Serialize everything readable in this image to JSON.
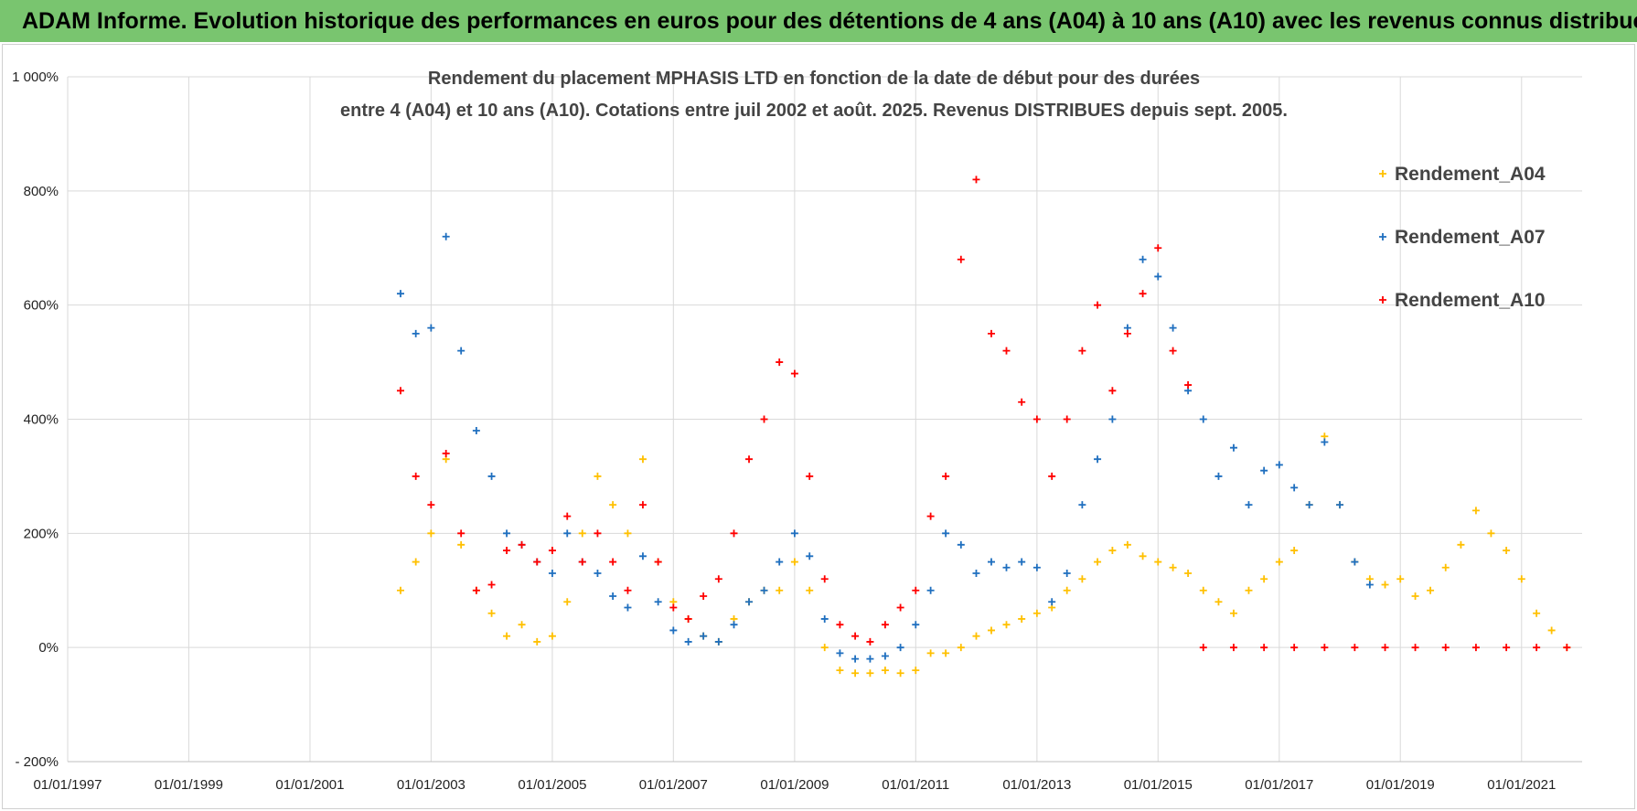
{
  "banner": {
    "text": "ADAM Informe. Evolution historique des performances en euros pour des détentions de 4 ans (A04) à 10 ans (A10) avec les revenus connus distribués"
  },
  "colors": {
    "banner": "#79c56f",
    "A04": "#ffc000",
    "A07": "#1f6fbf",
    "A10": "#ff0000",
    "grid": "#d9d9d9"
  },
  "chart_data": {
    "type": "scatter",
    "title_line1": "Rendement du placement MPHASIS LTD en fonction de la date de début pour des durées",
    "title_line2": "entre 4 (A04) et 10 ans (A10). Cotations entre juil 2002 et août. 2025. Revenus DISTRIBUES depuis sept. 2005.",
    "xlabel": "",
    "ylabel": "",
    "x_range": [
      "1997-01-01",
      "2022-01-01"
    ],
    "ylim": [
      -200,
      1000
    ],
    "x_ticks": [
      "01/01/1997",
      "01/01/1999",
      "01/01/2001",
      "01/01/2003",
      "01/01/2005",
      "01/01/2007",
      "01/01/2009",
      "01/01/2011",
      "01/01/2013",
      "01/01/2015",
      "01/01/2017",
      "01/01/2019",
      "01/01/2021"
    ],
    "y_ticks": [
      "1 000%",
      "800%",
      "600%",
      "400%",
      "200%",
      "0%",
      "- 200%"
    ],
    "grid": true,
    "legend_position": "right",
    "series": [
      {
        "name": "Rendement_A04",
        "color": "#ffc000",
        "points": [
          [
            "2002-07-01",
            100
          ],
          [
            "2002-10-01",
            150
          ],
          [
            "2003-01-01",
            200
          ],
          [
            "2003-04-01",
            330
          ],
          [
            "2003-07-01",
            180
          ],
          [
            "2003-10-01",
            100
          ],
          [
            "2004-01-01",
            60
          ],
          [
            "2004-04-01",
            20
          ],
          [
            "2004-07-01",
            40
          ],
          [
            "2004-10-01",
            10
          ],
          [
            "2005-01-01",
            20
          ],
          [
            "2005-04-01",
            80
          ],
          [
            "2005-07-01",
            200
          ],
          [
            "2005-10-01",
            300
          ],
          [
            "2006-01-01",
            250
          ],
          [
            "2006-04-01",
            200
          ],
          [
            "2006-07-01",
            330
          ],
          [
            "2006-10-01",
            150
          ],
          [
            "2007-01-01",
            80
          ],
          [
            "2007-04-01",
            50
          ],
          [
            "2007-07-01",
            20
          ],
          [
            "2007-10-01",
            10
          ],
          [
            "2008-01-01",
            50
          ],
          [
            "2008-04-01",
            80
          ],
          [
            "2008-07-01",
            100
          ],
          [
            "2008-10-01",
            100
          ],
          [
            "2009-01-01",
            150
          ],
          [
            "2009-04-01",
            100
          ],
          [
            "2009-07-01",
            0
          ],
          [
            "2009-10-01",
            -40
          ],
          [
            "2010-01-01",
            -45
          ],
          [
            "2010-04-01",
            -45
          ],
          [
            "2010-07-01",
            -40
          ],
          [
            "2010-10-01",
            -45
          ],
          [
            "2011-01-01",
            -40
          ],
          [
            "2011-04-01",
            -10
          ],
          [
            "2011-07-01",
            -10
          ],
          [
            "2011-10-01",
            0
          ],
          [
            "2012-01-01",
            20
          ],
          [
            "2012-04-01",
            30
          ],
          [
            "2012-07-01",
            40
          ],
          [
            "2012-10-01",
            50
          ],
          [
            "2013-01-01",
            60
          ],
          [
            "2013-04-01",
            70
          ],
          [
            "2013-07-01",
            100
          ],
          [
            "2013-10-01",
            120
          ],
          [
            "2014-01-01",
            150
          ],
          [
            "2014-04-01",
            170
          ],
          [
            "2014-07-01",
            180
          ],
          [
            "2014-10-01",
            160
          ],
          [
            "2015-01-01",
            150
          ],
          [
            "2015-04-01",
            140
          ],
          [
            "2015-07-01",
            130
          ],
          [
            "2015-10-01",
            100
          ],
          [
            "2016-01-01",
            80
          ],
          [
            "2016-04-01",
            60
          ],
          [
            "2016-07-01",
            100
          ],
          [
            "2016-10-01",
            120
          ],
          [
            "2017-01-01",
            150
          ],
          [
            "2017-04-01",
            170
          ],
          [
            "2017-07-01",
            250
          ],
          [
            "2017-10-01",
            370
          ],
          [
            "2018-01-01",
            250
          ],
          [
            "2018-04-01",
            150
          ],
          [
            "2018-07-01",
            120
          ],
          [
            "2018-10-01",
            110
          ],
          [
            "2019-01-01",
            120
          ],
          [
            "2019-04-01",
            90
          ],
          [
            "2019-07-01",
            100
          ],
          [
            "2019-10-01",
            140
          ],
          [
            "2020-01-01",
            180
          ],
          [
            "2020-04-01",
            240
          ],
          [
            "2020-07-01",
            200
          ],
          [
            "2020-10-01",
            170
          ],
          [
            "2021-01-01",
            120
          ],
          [
            "2021-04-01",
            60
          ],
          [
            "2021-07-01",
            30
          ],
          [
            "2021-10-01",
            0
          ]
        ]
      },
      {
        "name": "Rendement_A07",
        "color": "#1f6fbf",
        "points": [
          [
            "2002-07-01",
            620
          ],
          [
            "2002-10-01",
            550
          ],
          [
            "2003-01-01",
            560
          ],
          [
            "2003-04-01",
            720
          ],
          [
            "2003-07-01",
            520
          ],
          [
            "2003-10-01",
            380
          ],
          [
            "2004-01-01",
            300
          ],
          [
            "2004-04-01",
            200
          ],
          [
            "2004-07-01",
            180
          ],
          [
            "2004-10-01",
            150
          ],
          [
            "2005-01-01",
            130
          ],
          [
            "2005-04-01",
            200
          ],
          [
            "2005-07-01",
            150
          ],
          [
            "2005-10-01",
            130
          ],
          [
            "2006-01-01",
            90
          ],
          [
            "2006-04-01",
            70
          ],
          [
            "2006-07-01",
            160
          ],
          [
            "2006-10-01",
            80
          ],
          [
            "2007-01-01",
            30
          ],
          [
            "2007-04-01",
            10
          ],
          [
            "2007-07-01",
            20
          ],
          [
            "2007-10-01",
            10
          ],
          [
            "2008-01-01",
            40
          ],
          [
            "2008-04-01",
            80
          ],
          [
            "2008-07-01",
            100
          ],
          [
            "2008-10-01",
            150
          ],
          [
            "2009-01-01",
            200
          ],
          [
            "2009-04-01",
            160
          ],
          [
            "2009-07-01",
            50
          ],
          [
            "2009-10-01",
            -10
          ],
          [
            "2010-01-01",
            -20
          ],
          [
            "2010-04-01",
            -20
          ],
          [
            "2010-07-01",
            -15
          ],
          [
            "2010-10-01",
            0
          ],
          [
            "2011-01-01",
            40
          ],
          [
            "2011-04-01",
            100
          ],
          [
            "2011-07-01",
            200
          ],
          [
            "2011-10-01",
            180
          ],
          [
            "2012-01-01",
            130
          ],
          [
            "2012-04-01",
            150
          ],
          [
            "2012-07-01",
            140
          ],
          [
            "2012-10-01",
            150
          ],
          [
            "2013-01-01",
            140
          ],
          [
            "2013-04-01",
            80
          ],
          [
            "2013-07-01",
            130
          ],
          [
            "2013-10-01",
            250
          ],
          [
            "2014-01-01",
            330
          ],
          [
            "2014-04-01",
            400
          ],
          [
            "2014-07-01",
            560
          ],
          [
            "2014-10-01",
            680
          ],
          [
            "2015-01-01",
            650
          ],
          [
            "2015-04-01",
            560
          ],
          [
            "2015-07-01",
            450
          ],
          [
            "2015-10-01",
            400
          ],
          [
            "2016-01-01",
            300
          ],
          [
            "2016-04-01",
            350
          ],
          [
            "2016-07-01",
            250
          ],
          [
            "2016-10-01",
            310
          ],
          [
            "2017-01-01",
            320
          ],
          [
            "2017-04-01",
            280
          ],
          [
            "2017-07-01",
            250
          ],
          [
            "2017-10-01",
            360
          ],
          [
            "2018-01-01",
            250
          ],
          [
            "2018-04-01",
            150
          ],
          [
            "2018-07-01",
            110
          ]
        ]
      },
      {
        "name": "Rendement_A10",
        "color": "#ff0000",
        "points": [
          [
            "2002-07-01",
            450
          ],
          [
            "2002-10-01",
            300
          ],
          [
            "2003-01-01",
            250
          ],
          [
            "2003-04-01",
            340
          ],
          [
            "2003-07-01",
            200
          ],
          [
            "2003-10-01",
            100
          ],
          [
            "2004-01-01",
            110
          ],
          [
            "2004-04-01",
            170
          ],
          [
            "2004-07-01",
            180
          ],
          [
            "2004-10-01",
            150
          ],
          [
            "2005-01-01",
            170
          ],
          [
            "2005-04-01",
            230
          ],
          [
            "2005-07-01",
            150
          ],
          [
            "2005-10-01",
            200
          ],
          [
            "2006-01-01",
            150
          ],
          [
            "2006-04-01",
            100
          ],
          [
            "2006-07-01",
            250
          ],
          [
            "2006-10-01",
            150
          ],
          [
            "2007-01-01",
            70
          ],
          [
            "2007-04-01",
            50
          ],
          [
            "2007-07-01",
            90
          ],
          [
            "2007-10-01",
            120
          ],
          [
            "2008-01-01",
            200
          ],
          [
            "2008-04-01",
            330
          ],
          [
            "2008-07-01",
            400
          ],
          [
            "2008-10-01",
            500
          ],
          [
            "2009-01-01",
            480
          ],
          [
            "2009-04-01",
            300
          ],
          [
            "2009-07-01",
            120
          ],
          [
            "2009-10-01",
            40
          ],
          [
            "2010-01-01",
            20
          ],
          [
            "2010-04-01",
            10
          ],
          [
            "2010-07-01",
            40
          ],
          [
            "2010-10-01",
            70
          ],
          [
            "2011-01-01",
            100
          ],
          [
            "2011-04-01",
            230
          ],
          [
            "2011-07-01",
            300
          ],
          [
            "2011-10-01",
            680
          ],
          [
            "2012-01-01",
            820
          ],
          [
            "2012-04-01",
            550
          ],
          [
            "2012-07-01",
            520
          ],
          [
            "2012-10-01",
            430
          ],
          [
            "2013-01-01",
            400
          ],
          [
            "2013-04-01",
            300
          ],
          [
            "2013-07-01",
            400
          ],
          [
            "2013-10-01",
            520
          ],
          [
            "2014-01-01",
            600
          ],
          [
            "2014-04-01",
            450
          ],
          [
            "2014-07-01",
            550
          ],
          [
            "2014-10-01",
            620
          ],
          [
            "2015-01-01",
            700
          ],
          [
            "2015-04-01",
            520
          ],
          [
            "2015-07-01",
            460
          ],
          [
            "2015-10-01",
            0
          ],
          [
            "2016-04-01",
            0
          ],
          [
            "2016-10-01",
            0
          ],
          [
            "2017-04-01",
            0
          ],
          [
            "2017-10-01",
            0
          ],
          [
            "2018-04-01",
            0
          ],
          [
            "2018-10-01",
            0
          ],
          [
            "2019-04-01",
            0
          ],
          [
            "2019-10-01",
            0
          ],
          [
            "2020-04-01",
            0
          ],
          [
            "2020-10-01",
            0
          ],
          [
            "2021-04-01",
            0
          ],
          [
            "2021-10-01",
            0
          ]
        ]
      }
    ]
  }
}
